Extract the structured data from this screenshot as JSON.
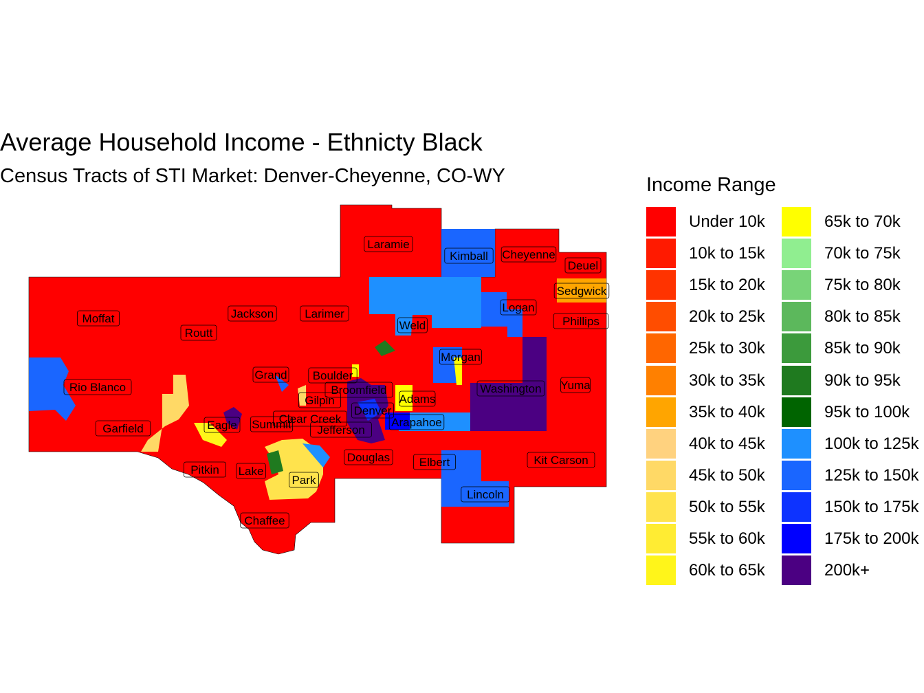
{
  "title": "Average Household Income - Ethnicty Black",
  "subtitle": "Census Tracts of STI Market: Denver-Cheyenne, CO-WY",
  "legend": {
    "title": "Income Range",
    "items": [
      {
        "label": "Under 10k",
        "color": "#ff0000"
      },
      {
        "label": "10k to 15k",
        "color": "#ff1a00"
      },
      {
        "label": "15k to 20k",
        "color": "#ff3300"
      },
      {
        "label": "20k to 25k",
        "color": "#ff4d00"
      },
      {
        "label": "25k to 30k",
        "color": "#ff6600"
      },
      {
        "label": "30k to 35k",
        "color": "#ff8000"
      },
      {
        "label": "35k to 40k",
        "color": "#ffa500"
      },
      {
        "label": "40k to 45k",
        "color": "#ffd27f"
      },
      {
        "label": "45k to 50k",
        "color": "#ffd966"
      },
      {
        "label": "50k to 55k",
        "color": "#ffe34d"
      },
      {
        "label": "55k to 60k",
        "color": "#ffec33"
      },
      {
        "label": "60k to 65k",
        "color": "#fff51a"
      },
      {
        "label": "65k to 70k",
        "color": "#ffff00"
      },
      {
        "label": "70k to 75k",
        "color": "#90ee90"
      },
      {
        "label": "75k to 80k",
        "color": "#78d478"
      },
      {
        "label": "80k to 85k",
        "color": "#5cb85c"
      },
      {
        "label": "85k to 90k",
        "color": "#3c9a3c"
      },
      {
        "label": "90k to 95k",
        "color": "#1f7a1f"
      },
      {
        "label": "95k to 100k",
        "color": "#006400"
      },
      {
        "label": "100k to 125k",
        "color": "#1e90ff"
      },
      {
        "label": "125k to 150k",
        "color": "#1a66ff"
      },
      {
        "label": "150k to 175k",
        "color": "#0d33ff"
      },
      {
        "label": "175k to 200k",
        "color": "#0000ff"
      },
      {
        "label": "200k+",
        "color": "#4b0082"
      }
    ]
  },
  "counties": [
    {
      "name": "Laramie",
      "income": "Under 10k"
    },
    {
      "name": "Kimball",
      "income": "125k to 150k"
    },
    {
      "name": "Cheyenne",
      "income": "Under 10k"
    },
    {
      "name": "Deuel",
      "income": "Under 10k"
    },
    {
      "name": "Sedgwick",
      "income": "35k to 40k"
    },
    {
      "name": "Logan",
      "income": "125k to 150k"
    },
    {
      "name": "Phillips",
      "income": "Under 10k"
    },
    {
      "name": "Moffat",
      "income": "Under 10k"
    },
    {
      "name": "Jackson",
      "income": "Under 10k"
    },
    {
      "name": "Larimer",
      "income": "Under 10k"
    },
    {
      "name": "Weld",
      "income": "100k to 125k"
    },
    {
      "name": "Routt",
      "income": "Under 10k"
    },
    {
      "name": "Morgan",
      "income": "125k to 150k"
    },
    {
      "name": "Grand",
      "income": "Under 10k"
    },
    {
      "name": "Boulder",
      "income": "Under 10k"
    },
    {
      "name": "Broomfield",
      "income": "Under 10k"
    },
    {
      "name": "Washington",
      "income": "200k+"
    },
    {
      "name": "Yuma",
      "income": "Under 10k"
    },
    {
      "name": "Rio Blanco",
      "income": "125k to 150k"
    },
    {
      "name": "Gilpin",
      "income": "Under 10k"
    },
    {
      "name": "Adams",
      "income": "Under 10k"
    },
    {
      "name": "Denver",
      "income": "Under 10k"
    },
    {
      "name": "Clear Creek",
      "income": "Under 10k"
    },
    {
      "name": "Arapahoe",
      "income": "100k to 125k"
    },
    {
      "name": "Eagle",
      "income": "Under 10k"
    },
    {
      "name": "Summit",
      "income": "Under 10k"
    },
    {
      "name": "Jefferson",
      "income": "Under 10k"
    },
    {
      "name": "Garfield",
      "income": "Under 10k"
    },
    {
      "name": "Douglas",
      "income": "Under 10k"
    },
    {
      "name": "Elbert",
      "income": "125k to 150k"
    },
    {
      "name": "Kit Carson",
      "income": "Under 10k"
    },
    {
      "name": "Pitkin",
      "income": "Under 10k"
    },
    {
      "name": "Lake",
      "income": "Under 10k"
    },
    {
      "name": "Park",
      "income": "50k to 55k"
    },
    {
      "name": "Lincoln",
      "income": "125k to 150k"
    },
    {
      "name": "Chaffee",
      "income": "Under 10k"
    }
  ]
}
